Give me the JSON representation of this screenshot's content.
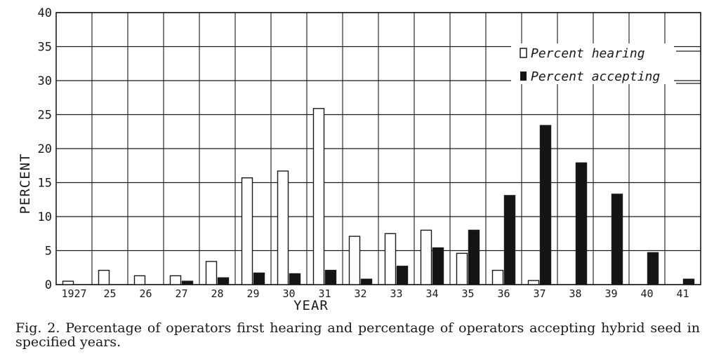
{
  "chart_data": {
    "type": "bar",
    "categories": [
      "1927",
      "25",
      "26",
      "27",
      "28",
      "29",
      "30",
      "31",
      "32",
      "33",
      "34",
      "35",
      "36",
      "37",
      "38",
      "39",
      "40",
      "41"
    ],
    "category_labels": [
      "1927",
      "25",
      "26",
      "27",
      "28",
      "29",
      "30",
      "31",
      "32",
      "33",
      "34",
      "35",
      "36",
      "37",
      "38",
      "39",
      "40",
      "41"
    ],
    "series": [
      {
        "name": "Percent hearing",
        "values": [
          0.5,
          2.1,
          1.3,
          1.3,
          3.4,
          15.7,
          16.7,
          25.9,
          7.1,
          7.5,
          8.0,
          4.6,
          2.1,
          0.6,
          0,
          0,
          0,
          0
        ],
        "fill": "#ffffff"
      },
      {
        "name": "Percent accepting",
        "values": [
          0,
          0,
          0,
          0.5,
          1.0,
          1.7,
          1.6,
          2.1,
          0.8,
          2.7,
          5.4,
          8.0,
          13.1,
          23.4,
          17.9,
          13.3,
          4.7,
          0.8
        ],
        "fill": "#141414"
      }
    ],
    "y_ticks": [
      "0",
      "5",
      "10",
      "15",
      "20",
      "25",
      "30",
      "35",
      "40"
    ],
    "ylim": [
      0,
      40
    ],
    "xlabel": "YEAR",
    "ylabel": "PERCENT",
    "grid": true,
    "legend_position": "top-right"
  },
  "caption": "Fig. 2.  Percentage of operators first hearing and percentage of operators accepting hybrid seed in specified years."
}
